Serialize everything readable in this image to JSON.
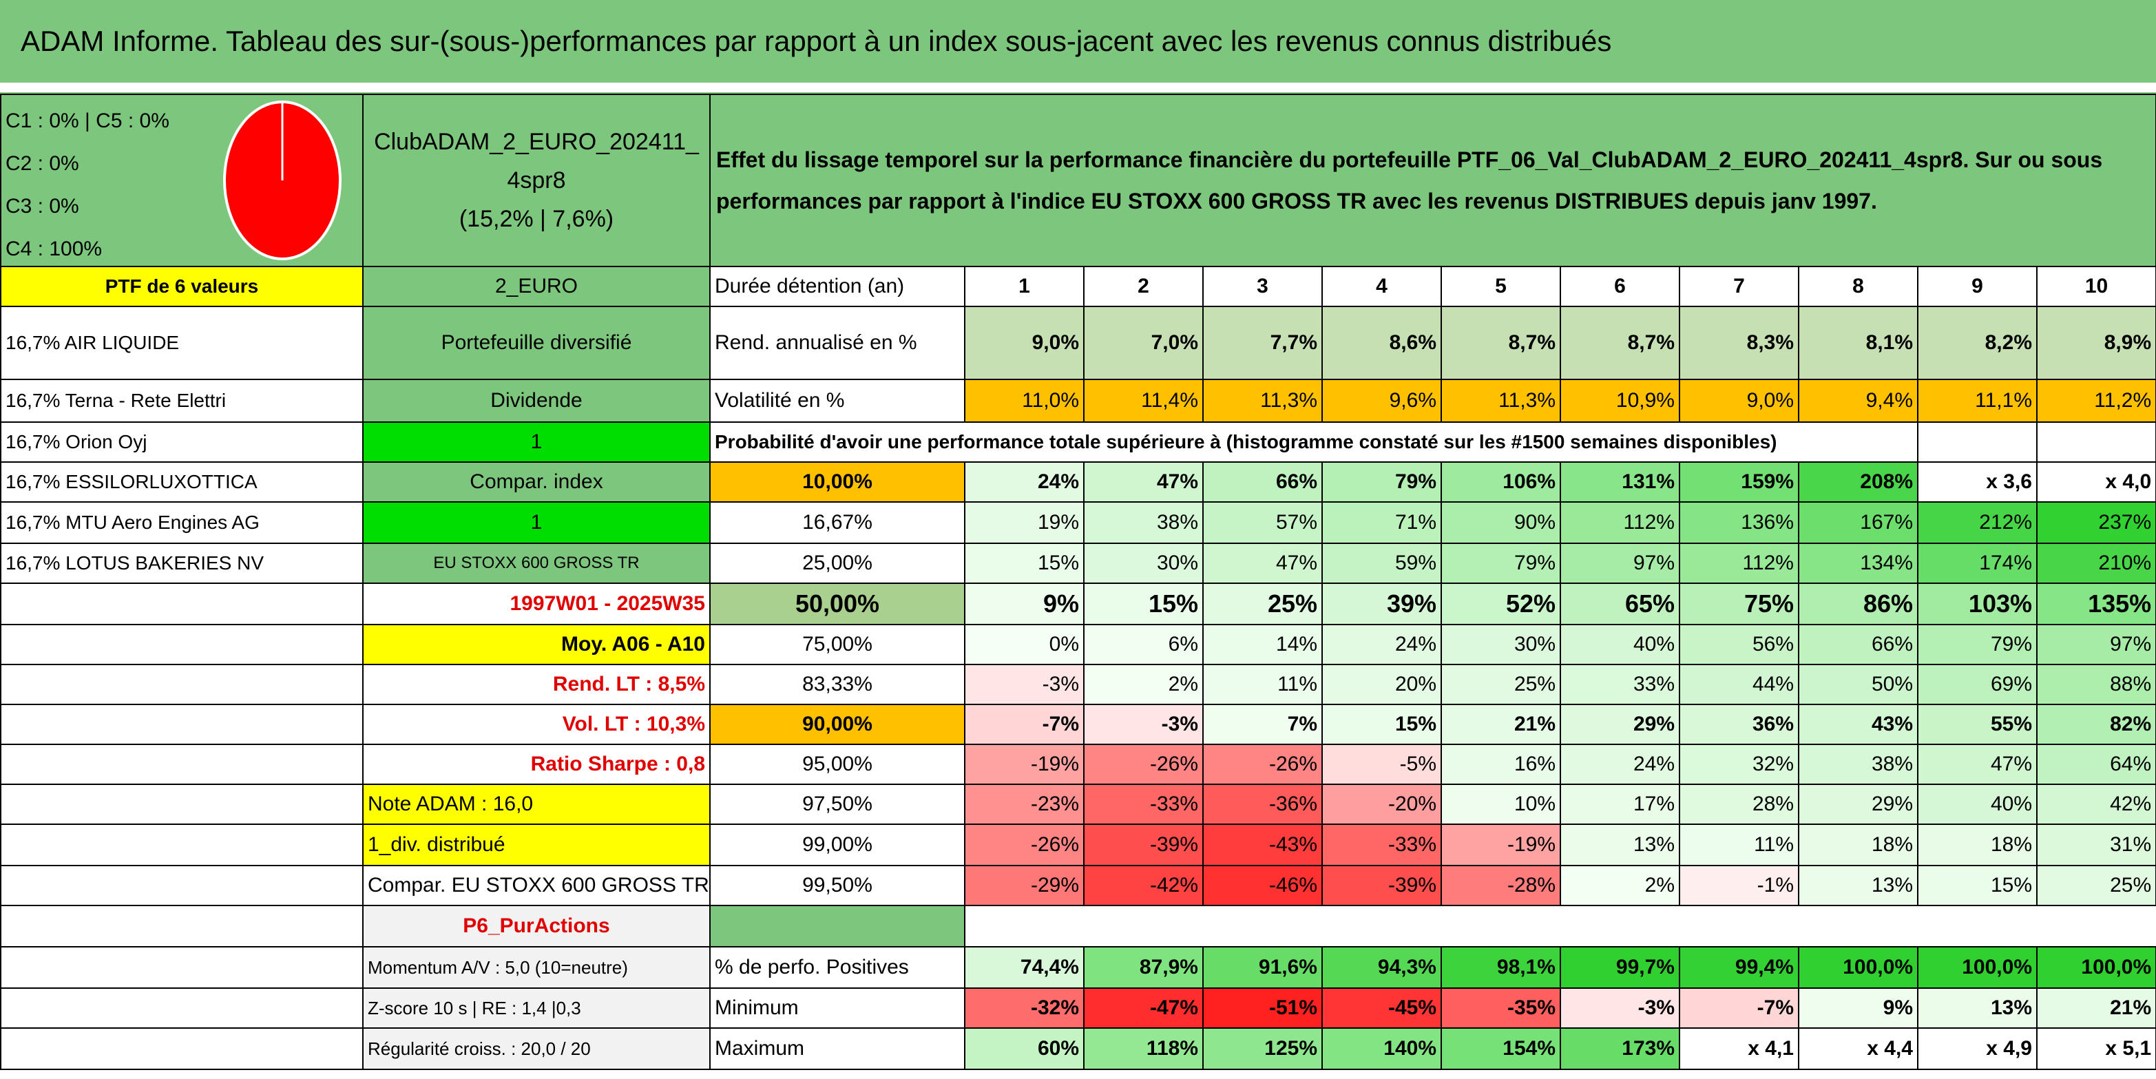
{
  "title": "ADAM Informe. Tableau des sur-(sous-)performances par rapport à un index sous-jacent avec les revenus connus distribués",
  "header": {
    "composition": [
      "C1 : 0% | C5 : 0%",
      "C2 : 0%",
      "C3 : 0%",
      "C4 : 100%"
    ],
    "portfolio": "ClubADAM_2_EURO_202411_4spr8",
    "portfolio_stats": "(15,2% | 7,6%)",
    "description": "Effet du lissage temporel sur la performance financière du portefeuille PTF_06_Val_ClubADAM_2_EURO_202411_4spr8. Sur ou sous performances par rapport à l'indice EU STOXX 600 GROSS TR avec les revenus DISTRIBUES depuis janv 1997."
  },
  "table": {
    "rows": [
      [
        "PTF de 6 valeurs",
        "2_EURO",
        "Durée détention (an)",
        1,
        2,
        3,
        4,
        5,
        6,
        7,
        8,
        9,
        10
      ],
      [
        "16,7% AIR LIQUIDE",
        "Portefeuille diversifié",
        "Rend. annualisé en %",
        "9,0%",
        "7,0%",
        "7,7%",
        "8,6%",
        "8,7%",
        "8,7%",
        "8,3%",
        "8,1%",
        "8,2%",
        "8,9%"
      ],
      [
        "16,7% Terna - Rete Elettri",
        "Dividende",
        "Volatilité en %",
        "11,0%",
        "11,4%",
        "11,3%",
        "9,6%",
        "11,3%",
        "10,9%",
        "9,0%",
        "9,4%",
        "11,1%",
        "11,2%"
      ],
      [
        "16,7% Orion Oyj",
        1,
        "Probabilité d'avoir une performance totale supérieure à (histogramme constaté sur les #1500 semaines disponibles)"
      ],
      [
        "16,7% ESSILORLUXOTTICA",
        "Compar. index",
        "10,00%",
        "24%",
        "47%",
        "66%",
        "79%",
        "106%",
        "131%",
        "159%",
        "208%",
        "x 3,6",
        "x 4,0"
      ],
      [
        "16,7% MTU Aero Engines AG",
        1,
        "16,67%",
        "19%",
        "38%",
        "57%",
        "71%",
        "90%",
        "112%",
        "136%",
        "167%",
        "212%",
        "237%"
      ],
      [
        "16,7% LOTUS BAKERIES NV",
        "EU STOXX 600 GROSS TR",
        "25,00%",
        "15%",
        "30%",
        "47%",
        "59%",
        "79%",
        "97%",
        "112%",
        "134%",
        "174%",
        "210%"
      ],
      [
        "1997W01 - 2025W35",
        "50,00%",
        "9%",
        "15%",
        "25%",
        "39%",
        "52%",
        "65%",
        "75%",
        "86%",
        "103%",
        "135%"
      ],
      [
        "Moy. A06 - A10",
        "75,00%",
        "0%",
        "6%",
        "14%",
        "24%",
        "30%",
        "40%",
        "56%",
        "66%",
        "79%",
        "97%"
      ],
      [
        "Rend. LT : 8,5%",
        "83,33%",
        "-3%",
        "2%",
        "11%",
        "20%",
        "25%",
        "33%",
        "44%",
        "50%",
        "69%",
        "88%"
      ],
      [
        "Vol. LT : 10,3%",
        "90,00%",
        "-7%",
        "-3%",
        "7%",
        "15%",
        "21%",
        "29%",
        "36%",
        "43%",
        "55%",
        "82%"
      ],
      [
        "Ratio Sharpe : 0,8",
        "95,00%",
        "-19%",
        "-26%",
        "-26%",
        "-5%",
        "16%",
        "24%",
        "32%",
        "38%",
        "47%",
        "64%"
      ],
      [
        "Note ADAM : 16,0",
        "97,50%",
        "-23%",
        "-33%",
        "-36%",
        "-20%",
        "10%",
        "17%",
        "28%",
        "29%",
        "40%",
        "42%"
      ],
      [
        "1_div. distribué",
        "99,00%",
        "-26%",
        "-39%",
        "-43%",
        "-33%",
        "-19%",
        "13%",
        "11%",
        "18%",
        "18%",
        "31%"
      ],
      [
        "Compar. EU STOXX 600 GROSS TR",
        "99,50%",
        "-29%",
        "-42%",
        "-46%",
        "-39%",
        "-28%",
        "2%",
        "-1%",
        "13%",
        "15%",
        "25%"
      ],
      [
        "P6_PurActions"
      ],
      [
        "Momentum A/V : 5,0 (10=neutre)",
        "% de perfo. Positives",
        "74,4%",
        "87,9%",
        "91,6%",
        "94,3%",
        "98,1%",
        "99,7%",
        "99,4%",
        "100,0%",
        "100,0%",
        "100,0%"
      ],
      [
        "Z-score 10 s | RE : 1,4 |0,3",
        "Minimum",
        "-32%",
        "-47%",
        "-51%",
        "-45%",
        "-35%",
        "-3%",
        "-7%",
        "9%",
        "13%",
        "21%"
      ],
      [
        "Régularité croiss. : 20,0 / 20",
        "Maximum",
        "60%",
        "118%",
        "125%",
        "140%",
        "154%",
        "173%",
        "x 4,1",
        "x 4,4",
        "x 4,9",
        "x 5,1"
      ]
    ]
  }
}
